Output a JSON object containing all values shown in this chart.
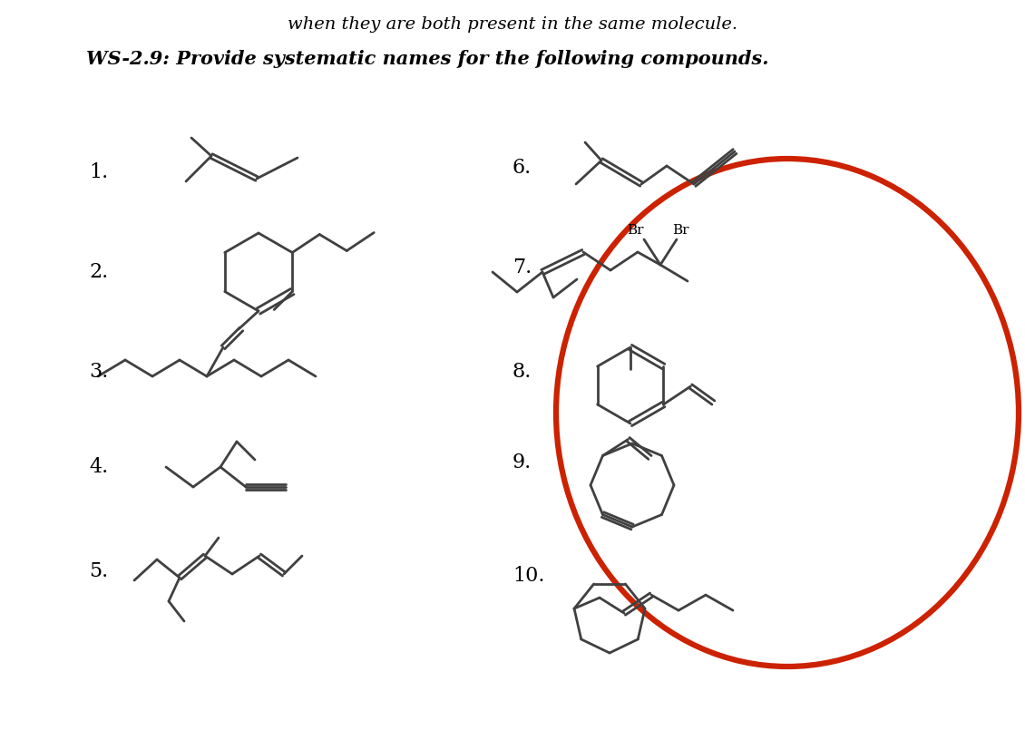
{
  "title_line": "when they are both present in the same molecule.",
  "subtitle": "WS-2.9: Provide systematic names for the following compounds.",
  "background_color": "#ffffff",
  "line_color": "#404040",
  "text_color": "#000000",
  "line_width": 2.0,
  "font_size_labels": 16,
  "font_size_title": 14,
  "font_size_subtitle": 15,
  "red_circle_color": "#cc2200",
  "red_circle_lw": 4.5
}
